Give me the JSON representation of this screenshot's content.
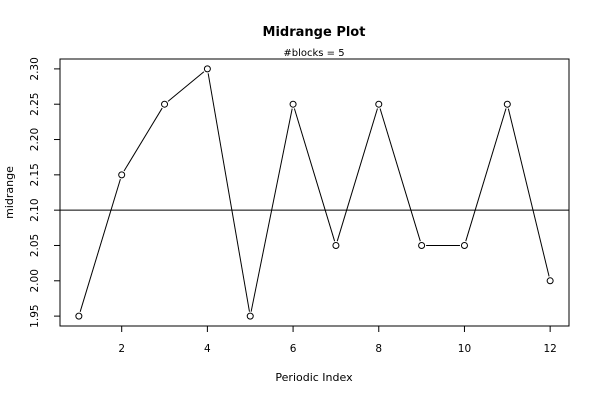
{
  "chart_data": {
    "type": "line",
    "title": "Midrange Plot",
    "subtitle": "#blocks =  5",
    "xlabel": "Periodic Index",
    "ylabel": "midrange",
    "x": [
      1,
      2,
      3,
      4,
      5,
      6,
      7,
      8,
      9,
      10,
      11,
      12
    ],
    "y": [
      1.95,
      2.15,
      2.25,
      2.3,
      1.95,
      2.25,
      2.05,
      2.25,
      2.05,
      2.05,
      2.25,
      2.0
    ],
    "reference_line_y": 2.1,
    "xlim": [
      0.56,
      12.44
    ],
    "ylim": [
      1.936,
      2.314
    ],
    "xticks": [
      2,
      4,
      6,
      8,
      10,
      12
    ],
    "xtick_labels": [
      "2",
      "4",
      "6",
      "8",
      "10",
      "12"
    ],
    "yticks": [
      1.95,
      2.0,
      2.05,
      2.1,
      2.15,
      2.2,
      2.25,
      2.3
    ],
    "ytick_labels": [
      "1.95",
      "2.00",
      "2.05",
      "2.10",
      "2.15",
      "2.20",
      "2.25",
      "2.30"
    ],
    "grid": false,
    "markers": "open-circle",
    "colors": {
      "line": "#000000",
      "marker_fill": "#ffffff",
      "background": "#ffffff"
    }
  }
}
